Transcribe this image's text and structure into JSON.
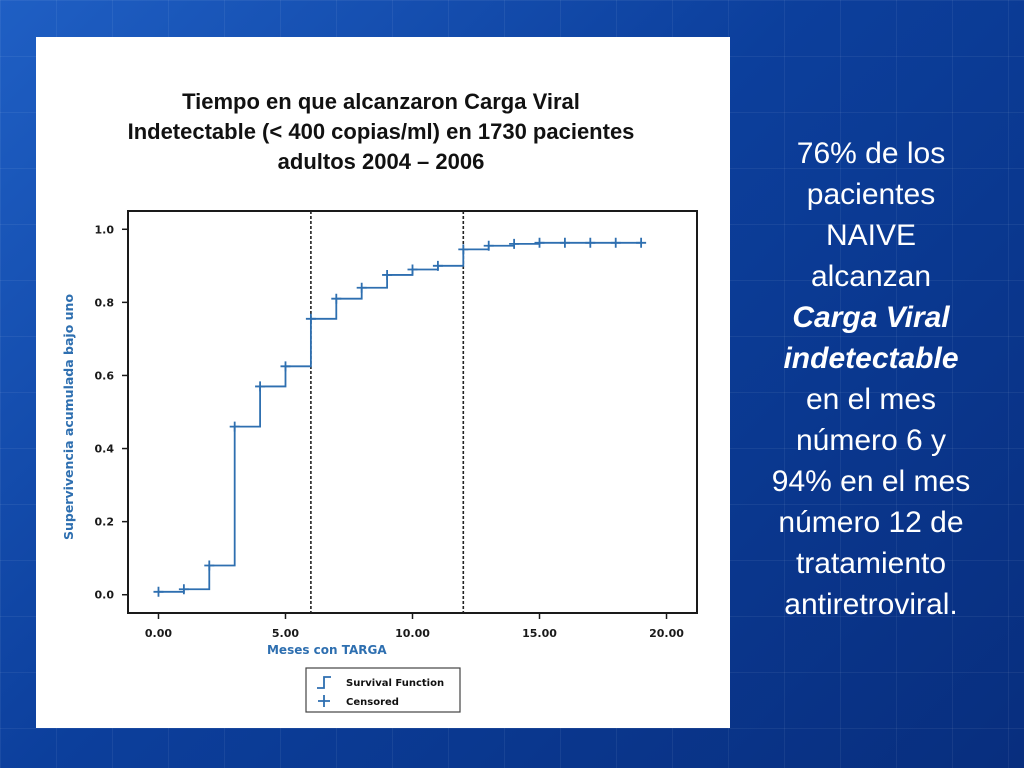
{
  "chart_data": {
    "type": "line",
    "title_lines": [
      "Tiempo en que alcanzaron Carga Viral",
      "Indetectable (< 400 copias/ml) en 1730 pacientes",
      "adultos 2004 – 2006"
    ],
    "xlabel": "Meses con TARGA",
    "ylabel": "Supervivencia acumulada bajo uno",
    "xlim": [
      -1.2,
      21.2
    ],
    "ylim": [
      -0.05,
      1.05
    ],
    "x_ticks": [
      0,
      5,
      10,
      15,
      20
    ],
    "x_tick_labels": [
      "0.00",
      "5.00",
      "10.00",
      "15.00",
      "20.00"
    ],
    "y_ticks": [
      0,
      0.2,
      0.4,
      0.6,
      0.8,
      1.0
    ],
    "y_tick_labels": [
      "0.0",
      "0.2",
      "0.4",
      "0.6",
      "0.8",
      "1.0"
    ],
    "reference_lines_x": [
      6,
      12
    ],
    "series": [
      {
        "name": "Survival Function",
        "style": "step",
        "x": [
          0,
          1,
          2,
          3,
          4,
          5,
          6,
          7,
          8,
          9,
          10,
          11,
          12,
          13,
          14,
          15,
          16,
          17,
          18,
          19
        ],
        "y": [
          0.008,
          0.015,
          0.08,
          0.46,
          0.57,
          0.625,
          0.755,
          0.81,
          0.84,
          0.875,
          0.89,
          0.9,
          0.945,
          0.955,
          0.96,
          0.963,
          0.963,
          0.963,
          0.963,
          0.963
        ]
      },
      {
        "name": "Censored",
        "style": "markers",
        "x": [
          0,
          1,
          2,
          3,
          4,
          5,
          6,
          7,
          8,
          9,
          10,
          11,
          12,
          13,
          14,
          15,
          16,
          17,
          18,
          19
        ],
        "y": [
          0.008,
          0.015,
          0.08,
          0.46,
          0.57,
          0.625,
          0.755,
          0.81,
          0.84,
          0.875,
          0.89,
          0.9,
          0.945,
          0.955,
          0.96,
          0.963,
          0.963,
          0.963,
          0.963,
          0.963
        ]
      }
    ],
    "legend": {
      "location": "bottom-center",
      "entries": [
        "Survival Function",
        "Censored"
      ]
    },
    "colors": {
      "series": "#2e6fb0",
      "axis": "#1a1a1a",
      "ylabel": "#2e6fb0",
      "xlabel": "#2e6fb0",
      "reference": "#222222"
    }
  },
  "side_text": {
    "lines": [
      "76% de los",
      "pacientes",
      "NAIVE",
      "alcanzan",
      "Carga Viral",
      "indetectable",
      "en el mes",
      "número 6 y",
      "94% en el mes",
      "número 12 de",
      "tratamiento",
      "antiretroviral."
    ]
  }
}
